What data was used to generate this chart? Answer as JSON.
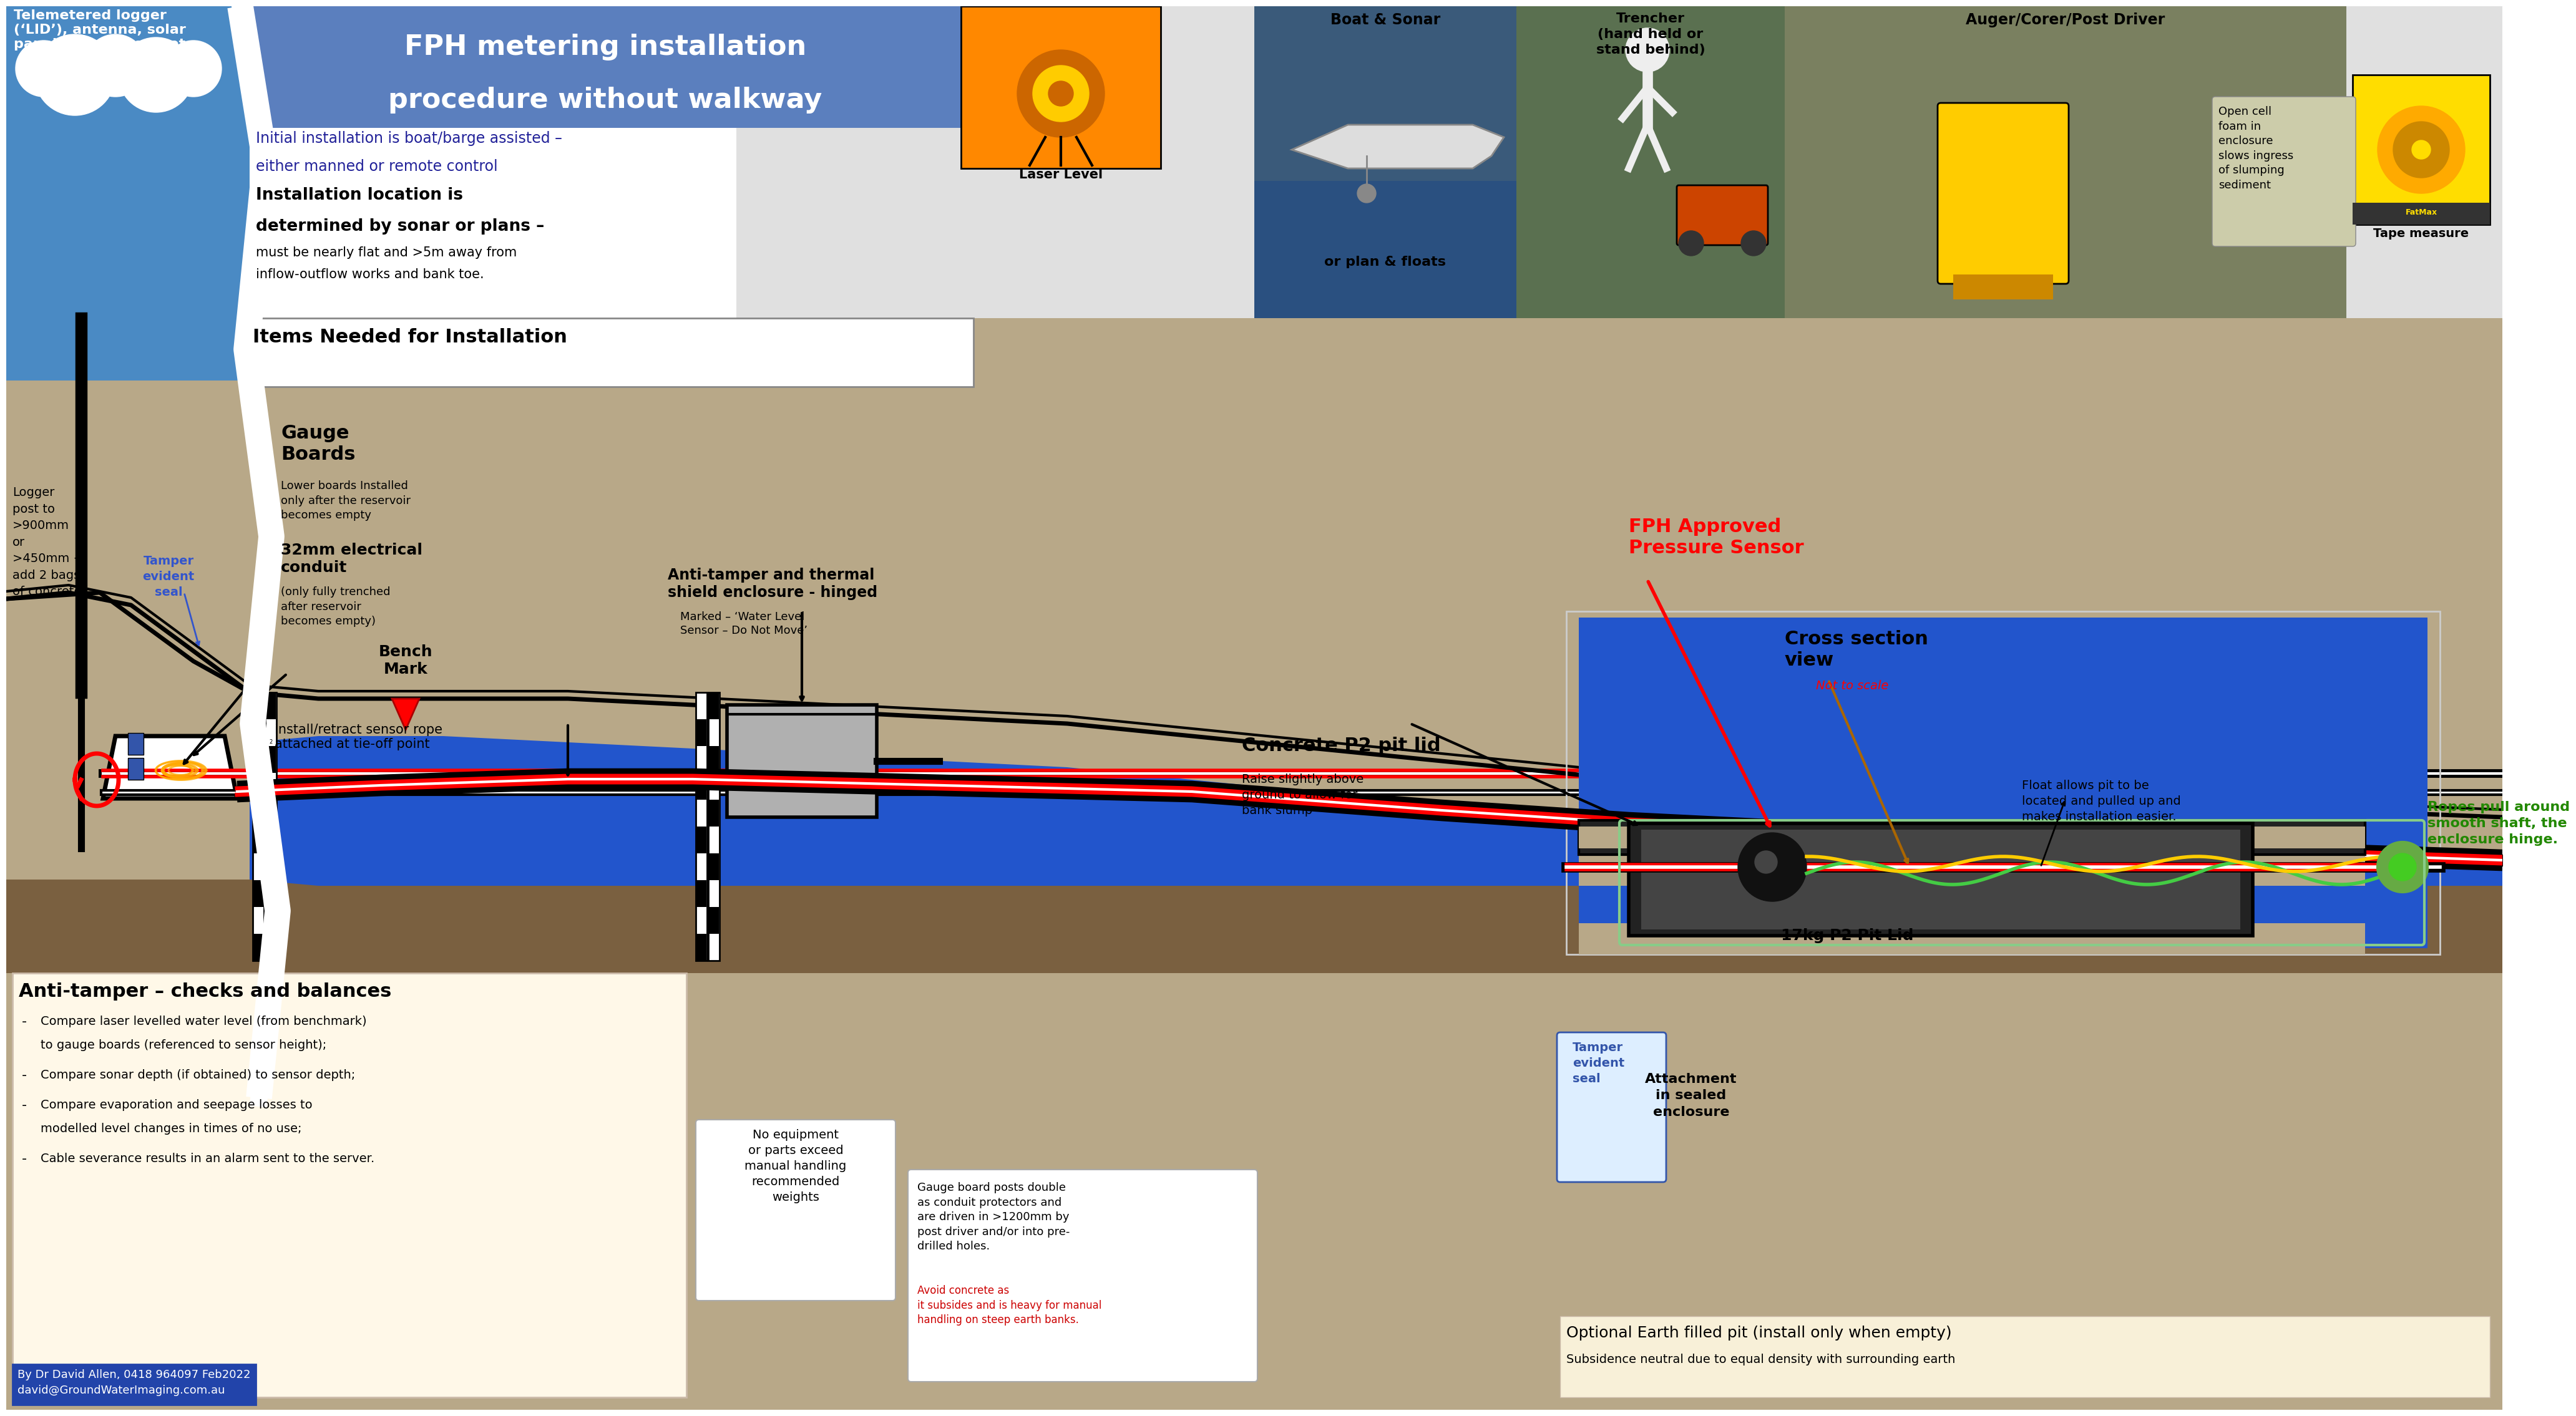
{
  "title_line1": "FPH metering installation",
  "title_line2": "procedure without walkway",
  "title_bg": "#5b7fbe",
  "sky_blue": "#4a8ac4",
  "gravel_color": "#b8a888",
  "gravel_dark": "#9a8868",
  "water_blue": "#2255cc",
  "water_dark": "#1a44aa",
  "soil_brown": "#7a6040",
  "soil_dark": "#5a4020",
  "black": "#000000",
  "white": "#ffffff",
  "red": "#cc0000",
  "yellow_rope": "#ffcc00",
  "green_rope": "#44cc44",
  "green_dark": "#228822",
  "blue_text": "#2255cc",
  "orange_red": "#cc4400",
  "checks_bg": "#fff8e8",
  "blue_box_bg": "#2244aa",
  "gray_enc": "#aaaaaa",
  "pit_dark": "#333333",
  "pit_gray": "#888888",
  "annotations": {
    "top_left_label": "Telemetered logger\n(‘LID’), antenna, solar\npanel, sensor vent, etc",
    "title_line1": "FPH metering installation",
    "title_line2": "procedure without walkway",
    "initial_install_1": "Initial installation is boat/barge assisted –",
    "initial_install_2": "either manned or remote control",
    "install_location_1": "Installation location is",
    "install_location_2": "determined by sonar or plans –",
    "install_location_3": "must be nearly flat and >5m away from",
    "install_location_4": "inflow-outflow works and bank toe.",
    "logger_post": "Logger\npost to\n>900mm\nor\n>450mm +\nadd 2 bags\nof concrete",
    "tamper_seal": "Tamper\nevident\nseal",
    "bench_mark": "Bench\nMark",
    "gauge_boards": "Gauge\nBoards",
    "gauge_boards_sub": "Lower boards Installed\nonly after the reservoir\nbecomes empty",
    "conduit": "32mm electrical\nconduit",
    "conduit_sub": "(only fully trenched\nafter reservoir\nbecomes empty)",
    "anti_tamper_enclosure": "Anti-tamper and thermal\nshield enclosure - hinged",
    "marked": "Marked – ‘Water Level\nSensor – Do Not Move’",
    "fph_sensor": "FPH Approved\nPressure Sensor",
    "cross_section": "Cross section\nview",
    "not_to_scale": "Not to scale",
    "concrete_lid": "Concrete P2 pit lid",
    "raise_slightly": "Raise slightly above\nground to allow for\nbank slump",
    "install_retract": "install/retract sensor rope\nattached at tie-off point",
    "anti_tamper_title": "Anti-tamper – checks and balances",
    "check1a": "Compare laser levelled water level (from benchmark)",
    "check1b": "to gauge boards (referenced to sensor height);",
    "check2": "Compare sonar depth (if obtained) to sensor depth;",
    "check3a": "Compare evaporation and seepage losses to",
    "check3b": "modelled level changes in times of no use;",
    "check4": "Cable severance results in an alarm sent to the server.",
    "boat_sonar": "Boat & Sonar",
    "or_plan": "or plan & floats",
    "laser_level": "Laser Level",
    "trencher": "Trencher\n(hand held or\nstand behind)",
    "auger": "Auger/Corer/Post Driver",
    "items_needed": "Items Needed for Installation",
    "open_cell": "Open cell\nfoam in\nenclosure\nslows ingress\nof slumping\nsediment",
    "tape_measure": "Tape measure",
    "float_allows": "Float allows pit to be\nlocated and pulled up and\nmakes installation easier.",
    "ropes_pull": "Ropes pull around\nsmooth shaft, the\nenclosure hinge.",
    "pit_lid_label": "17kg P2 Pit Lid",
    "tamper_evident2": "Tamper\nevident\nseal",
    "attachment": "Attachment\nin sealed\nenclosure",
    "no_equipment": "No equipment\nor parts exceed\nmanual handling\nrecommended\nweights",
    "gauge_posts1": "Gauge board posts double\nas conduit protectors and\nare driven in >1200mm by\npost driver and/or into pre-\ndrilled holes.",
    "gauge_posts2": "Avoid concrete as\nit subsides and is heavy for manual\nhandling on steep earth banks.",
    "optional_earth": "Optional Earth filled pit (install only when empty)",
    "subsidence": "Subsidence neutral due to equal density with surrounding earth",
    "by_author": "By Dr David Allen, 0418 964097 Feb2022\ndavid@GroundWaterImaging.com.au"
  }
}
